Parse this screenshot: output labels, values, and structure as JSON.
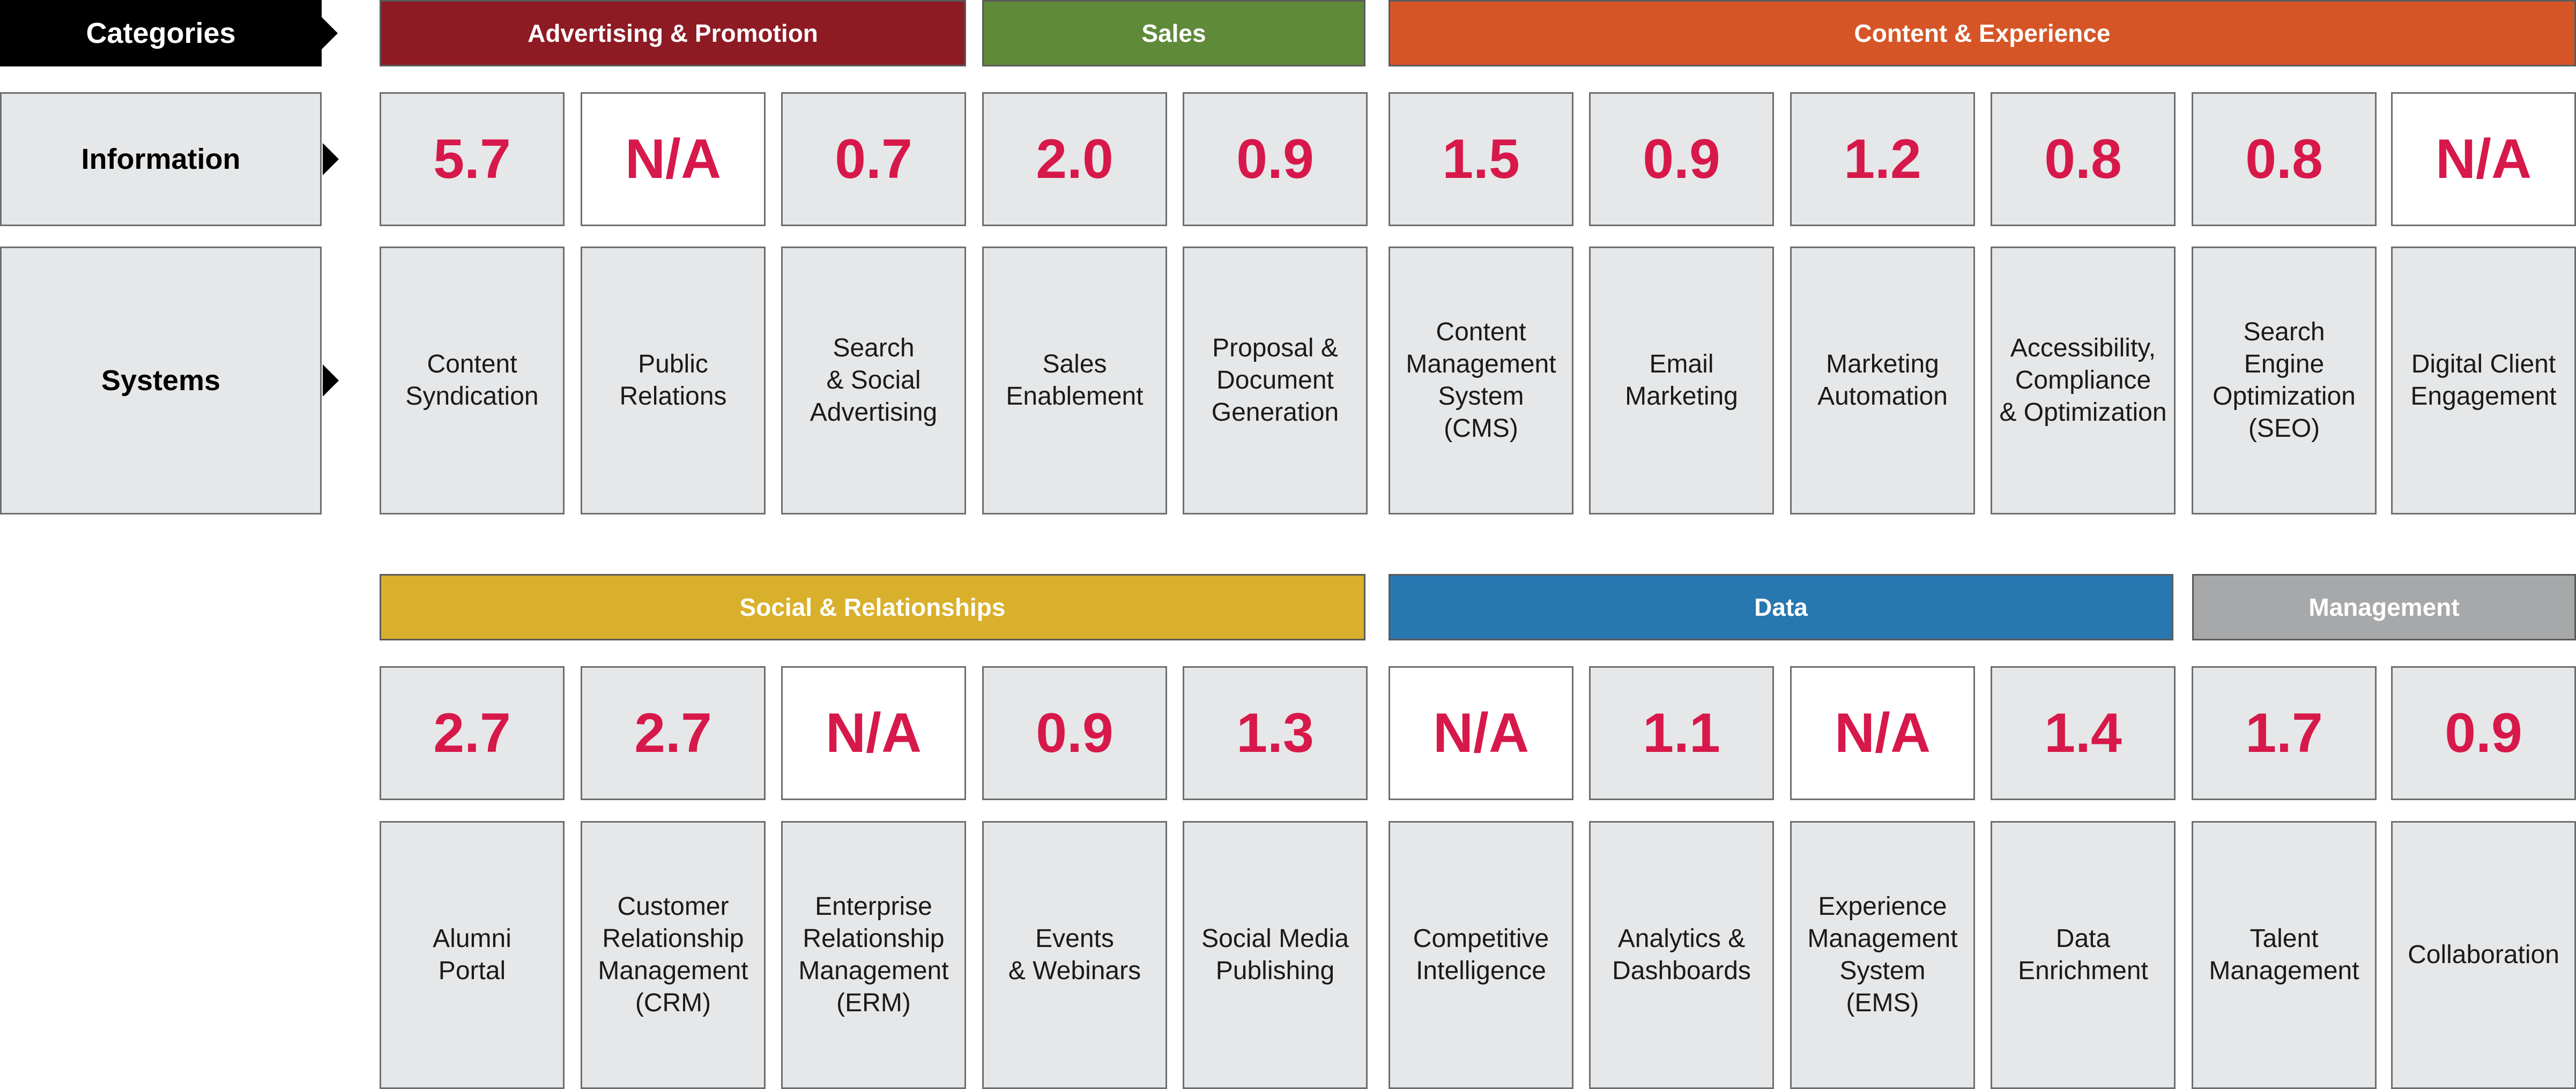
{
  "row_labels": {
    "categories": "Categories",
    "information": "Information",
    "systems": "Systems"
  },
  "colors": {
    "advertising": "#8e1a23",
    "sales": "#5f8a3a",
    "content": "#d65527",
    "social": "#d9b02b",
    "data": "#2777b0",
    "management": "#a7a8aa",
    "value_text": "#d7184a"
  },
  "top": {
    "categories": [
      {
        "label": "Advertising & Promotion",
        "color": "#8e1a23"
      },
      {
        "label": "Sales",
        "color": "#5f8a3a"
      },
      {
        "label": "Content & Experience",
        "color": "#d65527"
      }
    ],
    "values": [
      "5.7",
      "N/A",
      "0.7",
      "2.0",
      "0.9",
      "1.5",
      "0.9",
      "1.2",
      "0.8",
      "0.8",
      "N/A"
    ],
    "systems": [
      "Content\nSyndication",
      "Public\nRelations",
      "Search\n& Social\nAdvertising",
      "Sales\nEnablement",
      "Proposal &\nDocument\nGeneration",
      "Content\nManagement\nSystem\n(CMS)",
      "Email\nMarketing",
      "Marketing\nAutomation",
      "Accessibility,\nCompliance\n& Optimization",
      "Search\nEngine\nOptimization\n(SEO)",
      "Digital Client\nEngagement"
    ]
  },
  "bottom": {
    "categories": [
      {
        "label": "Social & Relationships",
        "color": "#d9b02b"
      },
      {
        "label": "Data",
        "color": "#2777b0"
      },
      {
        "label": "Management",
        "color": "#a7a8aa"
      }
    ],
    "values": [
      "2.7",
      "2.7",
      "N/A",
      "0.9",
      "1.3",
      "N/A",
      "1.1",
      "N/A",
      "1.4",
      "1.7",
      "0.9"
    ],
    "systems": [
      "Alumni\nPortal",
      "Customer\nRelationship\nManagement\n(CRM)",
      "Enterprise\nRelationship\nManagement\n(ERM)",
      "Events\n& Webinars",
      "Social Media\nPublishing",
      "Competitive\nIntelligence",
      "Analytics &\nDashboards",
      "Experience\nManagement\nSystem\n(EMS)",
      "Data\nEnrichment",
      "Talent\nManagement",
      "Collaboration"
    ]
  }
}
